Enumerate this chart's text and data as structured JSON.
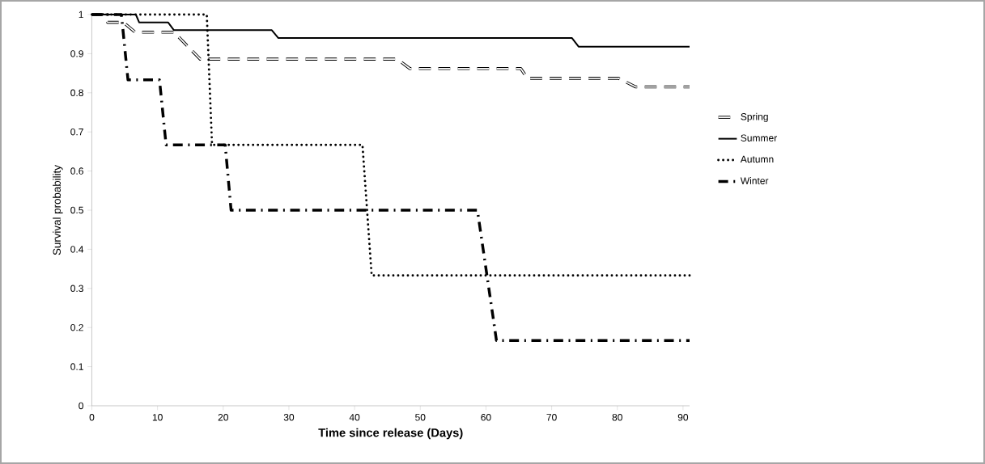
{
  "chart_data": {
    "type": "line",
    "xlabel": "Time since release (Days)",
    "ylabel": "Survival probability",
    "xlim": [
      0,
      91
    ],
    "ylim": [
      0,
      1
    ],
    "xticks": [
      0,
      10,
      20,
      30,
      40,
      50,
      60,
      70,
      80,
      90
    ],
    "yticks": [
      0,
      {
        "value": 0.1,
        "label": "0.1"
      },
      {
        "value": 0.2,
        "label": "0.2"
      },
      {
        "value": 0.3,
        "label": "0.3"
      },
      {
        "value": 0.4,
        "label": "0.4"
      },
      {
        "value": 0.5,
        "label": "0.5"
      },
      {
        "value": 0.6,
        "label": "0.6"
      },
      {
        "value": 0.7,
        "label": "0.7"
      },
      {
        "value": 0.8,
        "label": "0.8"
      },
      {
        "value": 0.9,
        "label": "0.9"
      },
      1
    ],
    "legend": "right",
    "marker": "none",
    "series": [
      {
        "name": "Spring",
        "color": "#000000",
        "line_style": "dashed",
        "x": [
          0,
          1.7,
          2.4,
          4.8,
          6.6,
          12.5,
          16.5,
          46.5,
          48.4,
          65.3,
          66.3,
          80.2,
          82.8,
          91
        ],
        "values": [
          1,
          1,
          0.98,
          0.98,
          0.955,
          0.955,
          0.886,
          0.886,
          0.862,
          0.862,
          0.837,
          0.837,
          0.815,
          0.815
        ]
      },
      {
        "name": "Summer",
        "color": "#000000",
        "line_style": "solid",
        "x": [
          0,
          6.7,
          7.2,
          11.6,
          12.5,
          27.4,
          28.4,
          73.1,
          74.1,
          91
        ],
        "values": [
          1,
          1,
          0.98,
          0.98,
          0.96,
          0.96,
          0.94,
          0.94,
          0.918,
          0.918
        ]
      },
      {
        "name": "Autumn",
        "color": "#000000",
        "line_style": "dotted",
        "x": [
          0,
          17.5,
          18.3,
          41.2,
          42.6,
          91
        ],
        "values": [
          1,
          1,
          0.667,
          0.667,
          0.333,
          0.333
        ]
      },
      {
        "name": "Winter",
        "color": "#000000",
        "line_style": "dashdot",
        "x": [
          0,
          4.5,
          5.5,
          10.3,
          11.3,
          20.3,
          21.2,
          58.7,
          61.6,
          91
        ],
        "values": [
          1,
          1,
          0.833,
          0.833,
          0.667,
          0.667,
          0.5,
          0.5,
          0.167,
          0.167
        ]
      }
    ]
  }
}
